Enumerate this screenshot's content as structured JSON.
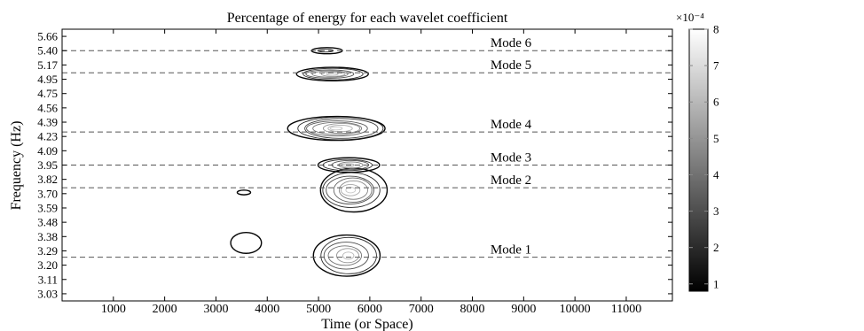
{
  "chart_data": {
    "type": "contour",
    "title": "Percentage of energy for each wavelet coefficient",
    "xlabel": "Time (or Space)",
    "ylabel": "Frequency (Hz)",
    "xlim": [
      0,
      11900
    ],
    "x_ticks": [
      1000,
      2000,
      3000,
      4000,
      5000,
      6000,
      7000,
      8000,
      9000,
      10000,
      11000
    ],
    "y_ticks": [
      "3.03",
      "3.11",
      "3.20",
      "3.29",
      "3.38",
      "3.48",
      "3.59",
      "3.70",
      "3.82",
      "3.95",
      "4.09",
      "4.23",
      "4.39",
      "4.56",
      "4.75",
      "4.95",
      "5.17",
      "5.40",
      "5.66"
    ],
    "grid": false,
    "modes": [
      {
        "label": "Mode 1",
        "freq": "3.25"
      },
      {
        "label": "Mode 2",
        "freq": "3.75"
      },
      {
        "label": "Mode 3",
        "freq": "3.95"
      },
      {
        "label": "Mode 4",
        "freq": "4.28"
      },
      {
        "label": "Mode 5",
        "freq": "5.05"
      },
      {
        "label": "Mode 6",
        "freq": "5.40"
      }
    ],
    "energy_regions": [
      {
        "time": 5550,
        "freq": "3.26",
        "rx": 650,
        "ry": 0.13,
        "peak": 7,
        "levels": 6
      },
      {
        "time": 5650,
        "freq": "3.73",
        "rx": 650,
        "ry": 0.17,
        "peak": 7.5,
        "levels": 7
      },
      {
        "time": 5600,
        "freq": "3.95",
        "rx": 600,
        "ry": 0.07,
        "peak": 6,
        "levels": 5
      },
      {
        "time": 5400,
        "freq": "4.32",
        "rx": 950,
        "ry": 0.14,
        "peak": 7.5,
        "levels": 8
      },
      {
        "time": 5250,
        "freq": "5.03",
        "rx": 700,
        "ry": 0.1,
        "peak": 7,
        "levels": 6
      },
      {
        "time": 5150,
        "freq": "5.40",
        "rx": 300,
        "ry": 0.05,
        "peak": 2,
        "levels": 2
      },
      {
        "time": 3600,
        "freq": "3.34",
        "rx": 300,
        "ry": 0.07,
        "peak": 1,
        "levels": 1
      },
      {
        "time": 3550,
        "freq": "3.71",
        "rx": 130,
        "ry": 0.02,
        "peak": 1,
        "levels": 1
      }
    ],
    "colorbar": {
      "exponent": "×10⁻⁴",
      "min": 0.8,
      "max": 8,
      "ticks": [
        "1",
        "2",
        "3",
        "4",
        "5",
        "6",
        "7",
        "8"
      ],
      "colormap": "gray"
    }
  }
}
